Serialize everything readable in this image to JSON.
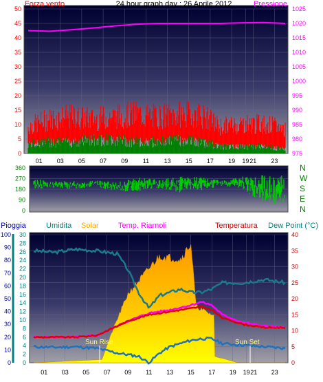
{
  "title": "24 hour graph day : 26 Aprile 2012",
  "colors": {
    "wind": "#ff0000",
    "gust": "#ff0000",
    "avg": "#008000",
    "pressure": "#ff00ff",
    "direction": "#00cc00",
    "dirlabel": "#008000",
    "rain_axis": "#0000aa",
    "hum_axis": "#008080",
    "solar": "#ffaa00",
    "riarnoli": "#ff00ff",
    "temp": "#cc0000",
    "dew": "#008080",
    "humidity_line": "#1a7a8a",
    "dew_line": "#1e73be",
    "bg_top": "#000030",
    "bg_bottom": "#9a9a9a"
  },
  "chart_data": [
    {
      "type": "line",
      "name": "wind-pressure",
      "left_label": "Forza vento",
      "right_label": "Pressione",
      "left_ticks": [
        "0",
        "5",
        "10",
        "15",
        "20",
        "25",
        "30",
        "35",
        "40",
        "45",
        "50"
      ],
      "right_ticks": [
        "975",
        "980",
        "985",
        "990",
        "995",
        "1000",
        "1005",
        "1010",
        "1015",
        "1020",
        "1025"
      ],
      "x_ticks": [
        "01",
        "03",
        "05",
        "07",
        "09",
        "11",
        "13",
        "15",
        "17",
        "19",
        "19",
        "21",
        "23"
      ],
      "ylim": [
        0,
        50
      ],
      "y2lim": [
        975,
        1025
      ],
      "pressure_points": [
        [
          0,
          1017.5
        ],
        [
          2,
          1017.3
        ],
        [
          4,
          1017.8
        ],
        [
          6,
          1018.4
        ],
        [
          8,
          1019.1
        ],
        [
          10,
          1019.7
        ],
        [
          12,
          1020.0
        ],
        [
          14,
          1020.0
        ],
        [
          16,
          1020.0
        ],
        [
          18,
          1020.0
        ],
        [
          20,
          1020.2
        ],
        [
          22,
          1020.3
        ],
        [
          24,
          1020.0
        ]
      ],
      "gust_envelope": [
        [
          0,
          11
        ],
        [
          2,
          14
        ],
        [
          4,
          15
        ],
        [
          6,
          14
        ],
        [
          8,
          15
        ],
        [
          10,
          16
        ],
        [
          12,
          15
        ],
        [
          14,
          16
        ],
        [
          16,
          16
        ],
        [
          18,
          11
        ],
        [
          20,
          12
        ],
        [
          22,
          12
        ],
        [
          24,
          10
        ]
      ],
      "avg_envelope": [
        [
          0,
          4
        ],
        [
          2,
          5
        ],
        [
          4,
          5
        ],
        [
          6,
          6
        ],
        [
          8,
          6
        ],
        [
          10,
          5
        ],
        [
          12,
          5
        ],
        [
          14,
          6
        ],
        [
          16,
          5
        ],
        [
          18,
          3
        ],
        [
          20,
          3
        ],
        [
          22,
          3
        ],
        [
          24,
          2
        ]
      ]
    },
    {
      "type": "scatter",
      "name": "wind-direction",
      "left_ticks": [
        "0",
        "90",
        "180",
        "270",
        "360"
      ],
      "right_labels": [
        "N",
        "W",
        "S",
        "E",
        "N"
      ],
      "ylim": [
        0,
        360
      ],
      "direction_band": [
        [
          0,
          180,
          270
        ],
        [
          2,
          190,
          250
        ],
        [
          4,
          180,
          250
        ],
        [
          6,
          200,
          260
        ],
        [
          8,
          160,
          240
        ],
        [
          10,
          160,
          280
        ],
        [
          12,
          190,
          260
        ],
        [
          14,
          150,
          300
        ],
        [
          16,
          170,
          280
        ],
        [
          18,
          210,
          260
        ],
        [
          20,
          180,
          290
        ],
        [
          22,
          40,
          300
        ],
        [
          24,
          40,
          300
        ]
      ]
    },
    {
      "type": "line",
      "name": "rain-humidity-solar-temp",
      "labels": {
        "rain": "Pioggia",
        "humidity": "Umidita",
        "solar": "Solar",
        "riarnoli": "Temp. Riarnoli",
        "temp": "Temperatura",
        "dew": "Dew Point (°C)"
      },
      "rain_ticks": [
        "0",
        "10",
        "20",
        "30",
        "40",
        "50",
        "60",
        "70",
        "80",
        "90",
        "100"
      ],
      "humidity_ticks": [
        "0",
        "2",
        "4",
        "6",
        "8",
        "10",
        "12",
        "14",
        "16",
        "18",
        "20",
        "22",
        "24",
        "26",
        "28",
        "30"
      ],
      "temp_ticks": [
        "0",
        "5",
        "10",
        "15",
        "20",
        "25",
        "30",
        "35",
        "40"
      ],
      "x_ticks": [
        "01",
        "03",
        "05",
        "07",
        "09",
        "11",
        "13",
        "15",
        "17",
        "19",
        "19",
        "21",
        "23"
      ],
      "sun_rise": "Sun Rise",
      "sun_set": "Sun Set",
      "ylim": [
        0,
        40
      ],
      "humidity_series": [
        [
          0,
          35
        ],
        [
          2,
          34.5
        ],
        [
          4,
          35.5
        ],
        [
          6,
          35
        ],
        [
          8,
          34
        ],
        [
          9,
          29
        ],
        [
          10,
          22
        ],
        [
          11,
          17
        ],
        [
          12,
          21
        ],
        [
          13,
          22
        ],
        [
          14,
          23
        ],
        [
          15,
          22
        ],
        [
          16,
          22
        ],
        [
          17,
          23
        ],
        [
          18,
          25
        ],
        [
          20,
          25
        ],
        [
          22,
          26
        ],
        [
          24,
          25
        ]
      ],
      "temp_series": [
        [
          0,
          8
        ],
        [
          2,
          8
        ],
        [
          4,
          8
        ],
        [
          6,
          8.5
        ],
        [
          7,
          10
        ],
        [
          9,
          13
        ],
        [
          11,
          15
        ],
        [
          13,
          16
        ],
        [
          15,
          17
        ],
        [
          16,
          17.5
        ],
        [
          17,
          16.5
        ],
        [
          18,
          14
        ],
        [
          20,
          12
        ],
        [
          22,
          11
        ],
        [
          24,
          11
        ]
      ],
      "riarnoli_series": [
        [
          0,
          8
        ],
        [
          2,
          8
        ],
        [
          4,
          8
        ],
        [
          6,
          8.5
        ],
        [
          7,
          10
        ],
        [
          9,
          13
        ],
        [
          11,
          15.5
        ],
        [
          13,
          16.5
        ],
        [
          15,
          18
        ],
        [
          16,
          19
        ],
        [
          17,
          18
        ],
        [
          18,
          15
        ],
        [
          20,
          12.5
        ],
        [
          22,
          11.5
        ],
        [
          24,
          11
        ]
      ],
      "dew_series": [
        [
          0,
          5
        ],
        [
          2,
          4.8
        ],
        [
          4,
          5
        ],
        [
          6,
          4.5
        ],
        [
          8,
          3
        ],
        [
          10,
          2
        ],
        [
          11,
          0
        ],
        [
          12,
          3
        ],
        [
          13,
          5
        ],
        [
          14,
          6
        ],
        [
          15,
          7
        ],
        [
          16,
          7.5
        ],
        [
          17,
          7.5
        ],
        [
          18,
          6
        ],
        [
          20,
          5.5
        ],
        [
          22,
          5
        ],
        [
          24,
          4.5
        ]
      ],
      "solar_series": [
        [
          0,
          0
        ],
        [
          6.5,
          1
        ],
        [
          7.5,
          10
        ],
        [
          9,
          22
        ],
        [
          11,
          30
        ],
        [
          12,
          34
        ],
        [
          14,
          33
        ],
        [
          15,
          38
        ],
        [
          15.5,
          18
        ],
        [
          16,
          17
        ],
        [
          17.2,
          15
        ],
        [
          17.3,
          2
        ],
        [
          19.5,
          0
        ],
        [
          24,
          0
        ]
      ]
    }
  ]
}
